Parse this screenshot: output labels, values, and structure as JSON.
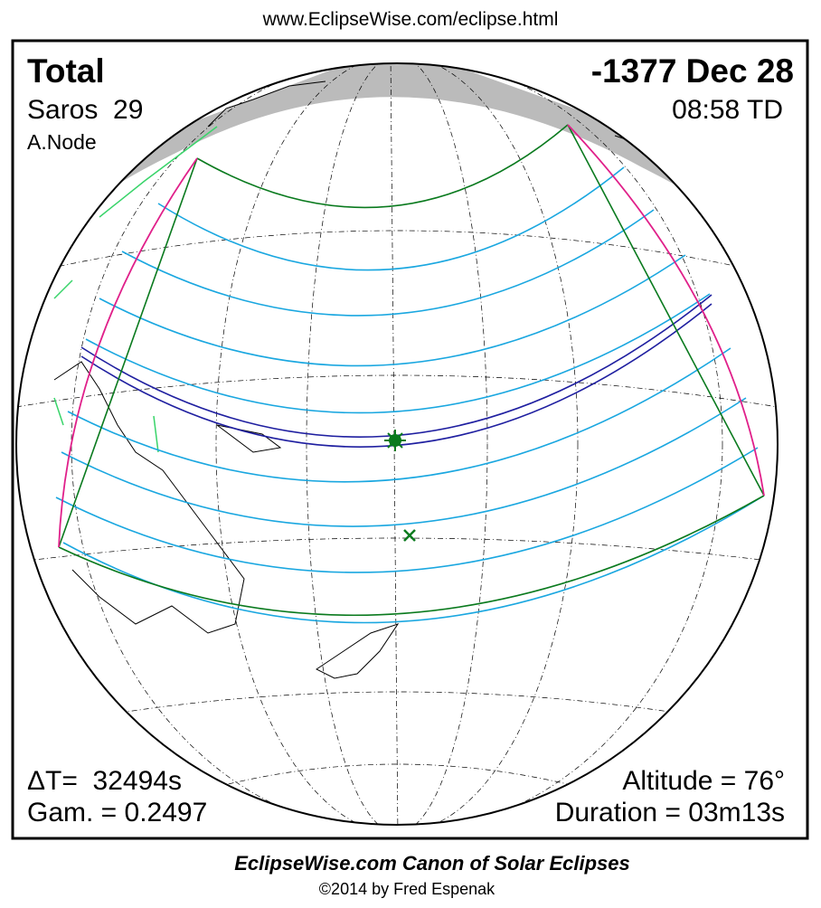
{
  "header": {
    "url": "www.EclipseWise.com/eclipse.html"
  },
  "eclipse": {
    "type": "Total",
    "date": "-1377 Dec 28",
    "saros": "Saros  29",
    "time": "08:58 TD",
    "node": "A.Node",
    "delta_t": "ΔT=  32494s",
    "gamma": "Gam. = 0.2497",
    "altitude": "Altitude = 76°",
    "duration": "Duration = 03m13s"
  },
  "footer": {
    "title": "EclipseWise.com Canon of Solar Eclipses",
    "copyright": "©2014 by Fred Espenak"
  }
}
